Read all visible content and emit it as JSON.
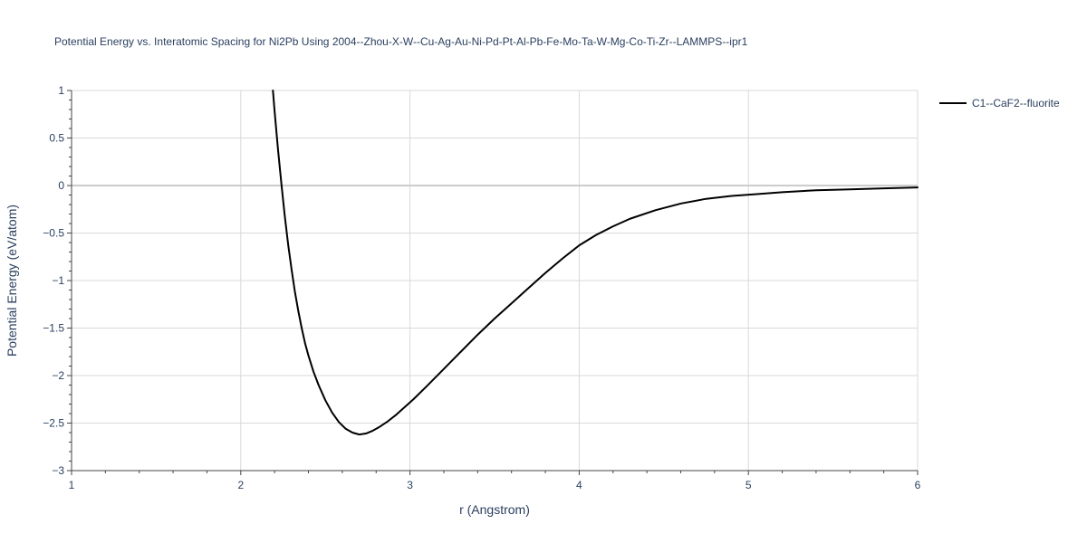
{
  "chart_data": {
    "type": "line",
    "title": "Potential Energy vs. Interatomic Spacing for Ni2Pb Using 2004--Zhou-X-W--Cu-Ag-Au-Ni-Pd-Pt-Al-Pb-Fe-Mo-Ta-W-Mg-Co-Ti-Zr--LAMMPS--ipr1",
    "xlabel": "r (Angstrom)",
    "ylabel": "Potential Energy (eV/atom)",
    "xlim": [
      1,
      6
    ],
    "ylim": [
      -3,
      1
    ],
    "x_ticks": [
      "1",
      "2",
      "3",
      "4",
      "5",
      "6"
    ],
    "y_ticks": [
      "1",
      "0.5",
      "0",
      "−0.5",
      "−1",
      "−1.5",
      "−2",
      "−2.5",
      "−3"
    ],
    "grid": true,
    "legend_position": "top-right",
    "colors": {
      "series": "#000000",
      "grid": "#d9d9d9",
      "zero_line": "#cccccc",
      "text": "#2a3f5f",
      "axis": "#444444"
    },
    "series": [
      {
        "name": "C1--CaF2--fluorite",
        "x": [
          2.19,
          2.2,
          2.22,
          2.24,
          2.26,
          2.28,
          2.3,
          2.32,
          2.34,
          2.36,
          2.38,
          2.4,
          2.43,
          2.46,
          2.5,
          2.54,
          2.58,
          2.62,
          2.66,
          2.7,
          2.74,
          2.78,
          2.82,
          2.87,
          2.92,
          2.97,
          3.02,
          3.1,
          3.2,
          3.3,
          3.4,
          3.5,
          3.6,
          3.7,
          3.8,
          3.9,
          4.0,
          4.1,
          4.2,
          4.3,
          4.45,
          4.6,
          4.75,
          4.9,
          5.05,
          5.2,
          5.4,
          5.6,
          5.8,
          6.0
        ],
        "y": [
          1.0,
          0.78,
          0.38,
          0.02,
          -0.32,
          -0.62,
          -0.88,
          -1.12,
          -1.32,
          -1.5,
          -1.66,
          -1.79,
          -1.96,
          -2.1,
          -2.26,
          -2.39,
          -2.49,
          -2.56,
          -2.6,
          -2.62,
          -2.61,
          -2.58,
          -2.54,
          -2.48,
          -2.41,
          -2.33,
          -2.25,
          -2.11,
          -1.93,
          -1.75,
          -1.57,
          -1.4,
          -1.24,
          -1.08,
          -0.92,
          -0.77,
          -0.63,
          -0.52,
          -0.43,
          -0.35,
          -0.26,
          -0.19,
          -0.14,
          -0.11,
          -0.09,
          -0.07,
          -0.05,
          -0.04,
          -0.03,
          -0.02
        ]
      }
    ]
  }
}
